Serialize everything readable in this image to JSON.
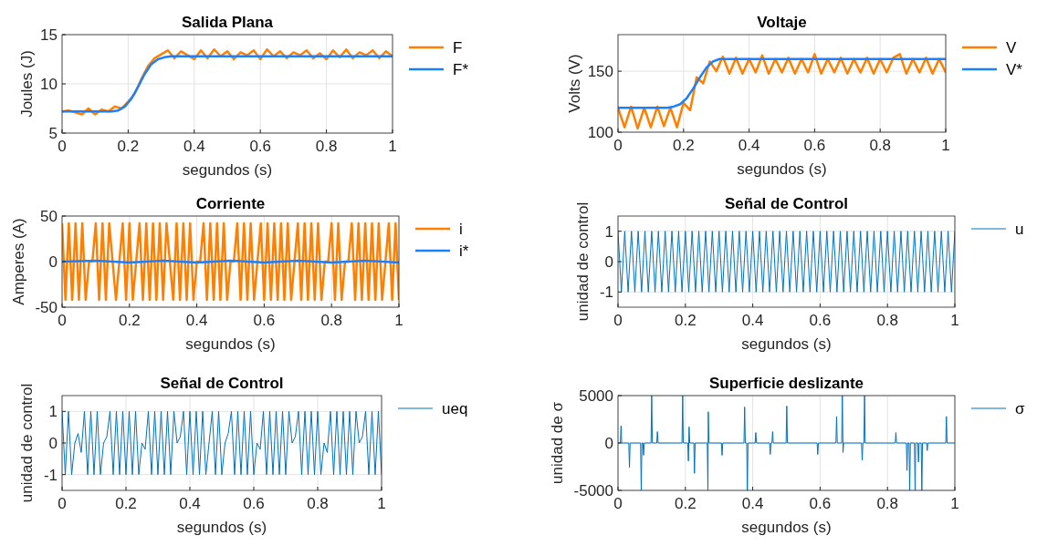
{
  "chart_data": [
    {
      "type": "line",
      "title": "Salida Plana",
      "xlabel": "segundos (s)",
      "ylabel": "Joules (J)",
      "xlim": [
        0,
        1
      ],
      "xticks": [
        0,
        0.2,
        0.4,
        0.6,
        0.8,
        1
      ],
      "ylim": [
        5,
        15
      ],
      "yticks": [
        5,
        10,
        15
      ],
      "grid": true,
      "legend": "top right",
      "series": [
        {
          "name": "F",
          "color": "#ff8000",
          "x": [
            0,
            0.02,
            0.04,
            0.06,
            0.08,
            0.1,
            0.12,
            0.14,
            0.16,
            0.18,
            0.2,
            0.22,
            0.24,
            0.26,
            0.28,
            0.3,
            0.32,
            0.34,
            0.36,
            0.38,
            0.4,
            0.42,
            0.44,
            0.46,
            0.48,
            0.5,
            0.52,
            0.54,
            0.56,
            0.58,
            0.6,
            0.62,
            0.64,
            0.66,
            0.68,
            0.7,
            0.72,
            0.74,
            0.76,
            0.78,
            0.8,
            0.82,
            0.84,
            0.86,
            0.88,
            0.9,
            0.92,
            0.94,
            0.96,
            0.98,
            1
          ],
          "values": [
            7.2,
            7.3,
            7.1,
            6.9,
            7.5,
            6.9,
            7.4,
            7.2,
            7.7,
            7.5,
            8.2,
            9.0,
            10.5,
            11.8,
            12.6,
            13.0,
            13.4,
            12.6,
            13.3,
            12.9,
            12.5,
            13.4,
            12.6,
            13.5,
            12.8,
            13.3,
            12.5,
            13.2,
            12.9,
            13.4,
            12.5,
            13.5,
            12.8,
            13.3,
            12.6,
            13.2,
            12.9,
            13.4,
            12.6,
            13.1,
            12.5,
            13.4,
            12.7,
            13.5,
            12.6,
            13.2,
            12.9,
            13.4,
            12.6,
            13.3,
            12.8
          ]
        },
        {
          "name": "F*",
          "color": "#1a80ff",
          "x": [
            0,
            0.1,
            0.15,
            0.17,
            0.19,
            0.21,
            0.23,
            0.25,
            0.27,
            0.29,
            0.31,
            0.33,
            0.4,
            1
          ],
          "values": [
            7.2,
            7.2,
            7.2,
            7.3,
            7.7,
            8.5,
            9.7,
            11.0,
            12.0,
            12.5,
            12.7,
            12.8,
            12.8,
            12.8
          ]
        }
      ]
    },
    {
      "type": "line",
      "title": "Voltaje",
      "xlabel": "segundos (s)",
      "ylabel": "Volts (V)",
      "xlim": [
        0,
        1
      ],
      "xticks": [
        0,
        0.2,
        0.4,
        0.6,
        0.8,
        1
      ],
      "ylim": [
        100,
        180
      ],
      "yticks": [
        100,
        150
      ],
      "grid": true,
      "legend": "top right",
      "series": [
        {
          "name": "V",
          "color": "#ff8000",
          "x": [
            0,
            0.02,
            0.04,
            0.06,
            0.08,
            0.1,
            0.12,
            0.14,
            0.16,
            0.18,
            0.2,
            0.22,
            0.24,
            0.26,
            0.28,
            0.3,
            0.32,
            0.34,
            0.36,
            0.38,
            0.4,
            0.42,
            0.44,
            0.46,
            0.48,
            0.5,
            0.52,
            0.54,
            0.56,
            0.58,
            0.6,
            0.62,
            0.64,
            0.66,
            0.68,
            0.7,
            0.72,
            0.74,
            0.76,
            0.78,
            0.8,
            0.82,
            0.84,
            0.86,
            0.88,
            0.9,
            0.92,
            0.94,
            0.96,
            0.98,
            1
          ],
          "values": [
            120,
            104,
            121,
            103,
            120,
            104,
            121,
            105,
            120,
            104,
            124,
            118,
            145,
            140,
            158,
            150,
            162,
            148,
            161,
            148,
            160,
            149,
            163,
            148,
            160,
            149,
            161,
            148,
            160,
            149,
            164,
            148,
            160,
            149,
            161,
            148,
            160,
            149,
            161,
            148,
            160,
            149,
            161,
            164,
            148,
            160,
            149,
            161,
            148,
            160,
            149
          ]
        },
        {
          "name": "V*",
          "color": "#1a80ff",
          "x": [
            0,
            0.1,
            0.15,
            0.17,
            0.19,
            0.21,
            0.23,
            0.25,
            0.27,
            0.29,
            0.31,
            0.33,
            0.4,
            1
          ],
          "values": [
            120,
            120,
            120,
            121,
            123,
            128,
            136,
            145,
            153,
            158,
            160,
            160,
            160,
            160
          ]
        }
      ]
    },
    {
      "type": "line",
      "title": "Corriente",
      "xlabel": "segundos (s)",
      "ylabel": "Amperes (A)",
      "xlim": [
        0,
        1
      ],
      "xticks": [
        0,
        0.2,
        0.4,
        0.6,
        0.8,
        1
      ],
      "ylim": [
        -50,
        50
      ],
      "yticks": [
        -50,
        0,
        50
      ],
      "grid": true,
      "legend": "top right",
      "x": [
        0,
        0.01,
        0.02,
        0.03,
        0.04,
        0.05,
        0.06,
        0.07,
        0.08,
        0.09,
        0.1,
        0.11,
        0.12,
        0.13,
        0.14,
        0.15,
        0.16,
        0.17,
        0.18,
        0.19,
        0.2,
        0.21,
        0.22,
        0.23,
        0.24,
        0.25,
        0.26,
        0.27,
        0.28,
        0.29,
        0.3,
        0.31,
        0.32,
        0.33,
        0.34,
        0.35,
        0.36,
        0.37,
        0.38,
        0.39,
        0.4,
        0.41,
        0.42,
        0.43,
        0.44,
        0.45,
        0.46,
        0.47,
        0.48,
        0.49,
        0.5,
        0.51,
        0.52,
        0.53,
        0.54,
        0.55,
        0.56,
        0.57,
        0.58,
        0.59,
        0.6,
        0.61,
        0.62,
        0.63,
        0.64,
        0.65,
        0.66,
        0.67,
        0.68,
        0.69,
        0.7,
        0.71,
        0.72,
        0.73,
        0.74,
        0.75,
        0.76,
        0.77,
        0.78,
        0.79,
        0.8,
        0.81,
        0.82,
        0.83,
        0.84,
        0.85,
        0.86,
        0.87,
        0.88,
        0.89,
        0.9,
        0.91,
        0.92,
        0.93,
        0.94,
        0.95,
        0.96,
        0.97,
        0.98,
        0.99,
        1
      ],
      "series": [
        {
          "name": "i",
          "color": "#ff8000",
          "values": [
            42,
            -42,
            42,
            -42,
            42,
            -42,
            42,
            -42,
            0,
            0,
            42,
            -42,
            42,
            -42,
            42,
            0,
            -42,
            0,
            42,
            -42,
            42,
            -42,
            0,
            42,
            -42,
            42,
            -42,
            42,
            -42,
            42,
            -42,
            42,
            0,
            -42,
            42,
            -42,
            42,
            -42,
            42,
            -42,
            0,
            0,
            42,
            -42,
            42,
            -42,
            42,
            -42,
            42,
            -42,
            0,
            0,
            42,
            -42,
            42,
            -42,
            42,
            -42,
            0,
            42,
            -42,
            42,
            -42,
            42,
            -42,
            42,
            -42,
            42,
            -42,
            0,
            42,
            -42,
            42,
            -42,
            42,
            -42,
            42,
            -42,
            0,
            0,
            42,
            -42,
            42,
            -42,
            0,
            0,
            42,
            -42,
            42,
            -42,
            42,
            -42,
            42,
            -42,
            42,
            -42,
            0,
            42,
            -42,
            42,
            -42
          ]
        },
        {
          "name": "i*",
          "color": "#1a80ff",
          "x": [
            0,
            0.1,
            0.2,
            0.3,
            0.4,
            0.5,
            0.6,
            0.7,
            0.8,
            0.9,
            1
          ],
          "values": [
            0,
            1,
            -1,
            1,
            -1,
            1,
            -1,
            1,
            -1,
            1,
            -1
          ]
        }
      ]
    },
    {
      "type": "line",
      "title": "Señal de Control",
      "ylabel": "unidad de control",
      "xlabel": "segundos (s)",
      "xlim": [
        0,
        1
      ],
      "xticks": [
        0,
        0.2,
        0.4,
        0.6,
        0.8,
        1
      ],
      "ylim": [
        -1.5,
        1.5
      ],
      "yticks": [
        -1,
        0,
        1
      ],
      "grid": true,
      "legend": "top right",
      "x": [
        0,
        0.01,
        0.02,
        0.03,
        0.04,
        0.05,
        0.06,
        0.07,
        0.08,
        0.09,
        0.1,
        0.11,
        0.12,
        0.13,
        0.14,
        0.15,
        0.16,
        0.17,
        0.18,
        0.19,
        0.2,
        0.21,
        0.22,
        0.23,
        0.24,
        0.25,
        0.26,
        0.27,
        0.28,
        0.29,
        0.3,
        0.31,
        0.32,
        0.33,
        0.34,
        0.35,
        0.36,
        0.37,
        0.38,
        0.39,
        0.4,
        0.41,
        0.42,
        0.43,
        0.44,
        0.45,
        0.46,
        0.47,
        0.48,
        0.49,
        0.5,
        0.51,
        0.52,
        0.53,
        0.54,
        0.55,
        0.56,
        0.57,
        0.58,
        0.59,
        0.6,
        0.61,
        0.62,
        0.63,
        0.64,
        0.65,
        0.66,
        0.67,
        0.68,
        0.69,
        0.7,
        0.71,
        0.72,
        0.73,
        0.74,
        0.75,
        0.76,
        0.77,
        0.78,
        0.79,
        0.8,
        0.81,
        0.82,
        0.83,
        0.84,
        0.85,
        0.86,
        0.87,
        0.88,
        0.89,
        0.9,
        0.91,
        0.92,
        0.93,
        0.94,
        0.95,
        0.96,
        0.97,
        0.98,
        0.99,
        1
      ],
      "series": [
        {
          "name": "u",
          "color": "#0072bd",
          "values": [
            1,
            -1,
            1,
            -1,
            1,
            -1,
            1,
            -1,
            1,
            -1,
            1,
            -1,
            1,
            -1,
            1,
            -1,
            1,
            -1,
            1,
            -1,
            1,
            -1,
            1,
            -1,
            1,
            -1,
            1,
            -1,
            1,
            -1,
            1,
            -1,
            1,
            -1,
            1,
            -1,
            1,
            -1,
            1,
            -1,
            1,
            -1,
            1,
            -1,
            1,
            -1,
            1,
            -1,
            1,
            -1,
            1,
            -1,
            1,
            -1,
            1,
            -1,
            1,
            -1,
            1,
            -1,
            1,
            -1,
            1,
            -1,
            1,
            -1,
            1,
            -1,
            1,
            -1,
            1,
            -1,
            1,
            -1,
            1,
            -1,
            1,
            -1,
            1,
            -1,
            1,
            -1,
            1,
            -1,
            1,
            -1,
            1,
            -1,
            1,
            -1,
            1,
            -1,
            1,
            -1,
            1,
            -1,
            1,
            -1,
            1,
            -1,
            1
          ]
        }
      ]
    },
    {
      "type": "line",
      "title": "Señal de Control",
      "ylabel": "unidad de control",
      "xlabel": "segundos (s)",
      "xlim": [
        0,
        1
      ],
      "xticks": [
        0,
        0.2,
        0.4,
        0.6,
        0.8,
        1
      ],
      "ylim": [
        -1.5,
        1.5
      ],
      "yticks": [
        -1,
        0,
        1
      ],
      "grid": true,
      "legend": "top right",
      "x": [
        0,
        0.01,
        0.02,
        0.03,
        0.04,
        0.05,
        0.06,
        0.07,
        0.08,
        0.09,
        0.1,
        0.11,
        0.12,
        0.13,
        0.14,
        0.15,
        0.16,
        0.17,
        0.18,
        0.19,
        0.2,
        0.21,
        0.22,
        0.23,
        0.24,
        0.25,
        0.26,
        0.27,
        0.28,
        0.29,
        0.3,
        0.31,
        0.32,
        0.33,
        0.34,
        0.35,
        0.36,
        0.37,
        0.38,
        0.39,
        0.4,
        0.41,
        0.42,
        0.43,
        0.44,
        0.45,
        0.46,
        0.47,
        0.48,
        0.49,
        0.5,
        0.51,
        0.52,
        0.53,
        0.54,
        0.55,
        0.56,
        0.57,
        0.58,
        0.59,
        0.6,
        0.61,
        0.62,
        0.63,
        0.64,
        0.65,
        0.66,
        0.67,
        0.68,
        0.69,
        0.7,
        0.71,
        0.72,
        0.73,
        0.74,
        0.75,
        0.76,
        0.77,
        0.78,
        0.79,
        0.8,
        0.81,
        0.82,
        0.83,
        0.84,
        0.85,
        0.86,
        0.87,
        0.88,
        0.89,
        0.9,
        0.91,
        0.92,
        0.93,
        0.94,
        0.95,
        0.96,
        0.97,
        0.98,
        0.99,
        1
      ],
      "series": [
        {
          "name": "ueq",
          "color": "#0072bd",
          "values": [
            1,
            -1,
            1,
            -1,
            0,
            0.3,
            -0.3,
            1,
            -1,
            1,
            -1,
            1,
            -1,
            0,
            0.2,
            1,
            -1,
            1,
            -1,
            1,
            -1,
            1,
            -1,
            1,
            -1,
            0,
            -0.2,
            1,
            -1,
            1,
            -1,
            1,
            -1,
            1,
            -1,
            1,
            0,
            0.2,
            1,
            -1,
            1,
            -1,
            1,
            -1,
            1,
            -1,
            0,
            1,
            -1,
            1,
            -1,
            0,
            0.3,
            1,
            -1,
            1,
            -1,
            1,
            -1,
            1,
            -1,
            0,
            -0.2,
            1,
            -1,
            1,
            -1,
            1,
            -1,
            1,
            -1,
            1,
            0,
            0.2,
            1,
            -1,
            1,
            -1,
            1,
            -1,
            1,
            -1,
            0,
            -0.3,
            1,
            -1,
            1,
            -1,
            1,
            -1,
            1,
            -1,
            1,
            0,
            0.2,
            1,
            -1,
            1,
            -1,
            1,
            -1
          ]
        }
      ]
    },
    {
      "type": "line",
      "title": "Superficie deslizante",
      "ylabel": "unidad de σ",
      "xlabel": "segundos (s)",
      "xlim": [
        0,
        1
      ],
      "xticks": [
        0,
        0.2,
        0.4,
        0.6,
        0.8,
        1
      ],
      "ylim": [
        -5000,
        5000
      ],
      "yticks": [
        -5000,
        0,
        5000
      ],
      "grid": true,
      "legend": "top right",
      "series": [
        {
          "name": "σ",
          "color": "#0072bd",
          "x": [
            0,
            0.007,
            0.009,
            0.011,
            0.032,
            0.034,
            0.036,
            0.067,
            0.069,
            0.071,
            0.074,
            0.076,
            0.078,
            0.098,
            0.1,
            0.102,
            0.115,
            0.117,
            0.119,
            0.19,
            0.192,
            0.194,
            0.207,
            0.209,
            0.211,
            0.213,
            0.225,
            0.227,
            0.229,
            0.265,
            0.267,
            0.268,
            0.27,
            0.307,
            0.309,
            0.311,
            0.374,
            0.376,
            0.378,
            0.382,
            0.384,
            0.386,
            0.407,
            0.409,
            0.411,
            0.45,
            0.452,
            0.454,
            0.457,
            0.459,
            0.461,
            0.499,
            0.501,
            0.503,
            0.591,
            0.593,
            0.595,
            0.647,
            0.649,
            0.651,
            0.664,
            0.666,
            0.668,
            0.67,
            0.723,
            0.725,
            0.727,
            0.73,
            0.732,
            0.734,
            0.823,
            0.825,
            0.827,
            0.856,
            0.858,
            0.86,
            0.864,
            0.866,
            0.868,
            0.88,
            0.882,
            0.884,
            0.89,
            0.892,
            0.894,
            0.9,
            0.902,
            0.904,
            0.916,
            0.918,
            0.92,
            0.973,
            0.975,
            0.977,
            1
          ],
          "values": [
            0,
            0,
            1800,
            0,
            0,
            -2600,
            0,
            0,
            -5000,
            0,
            0,
            -1300,
            0,
            0,
            5000,
            0,
            0,
            1200,
            0,
            0,
            5000,
            0,
            0,
            -1900,
            1700,
            0,
            0,
            -3200,
            0,
            0,
            -5000,
            3300,
            0,
            0,
            -1300,
            0,
            0,
            3800,
            0,
            0,
            -5000,
            0,
            0,
            1100,
            0,
            0,
            -1200,
            0,
            0,
            1200,
            0,
            0,
            3900,
            0,
            0,
            -1200,
            0,
            0,
            2800,
            0,
            0,
            5000,
            -1000,
            0,
            0,
            -1800,
            0,
            0,
            5000,
            0,
            0,
            1100,
            0,
            0,
            -2900,
            0,
            0,
            -5000,
            0,
            0,
            -5000,
            0,
            0,
            -2000,
            0,
            0,
            -5000,
            0,
            0,
            -800,
            0,
            0,
            2800,
            0,
            0
          ]
        }
      ]
    }
  ]
}
